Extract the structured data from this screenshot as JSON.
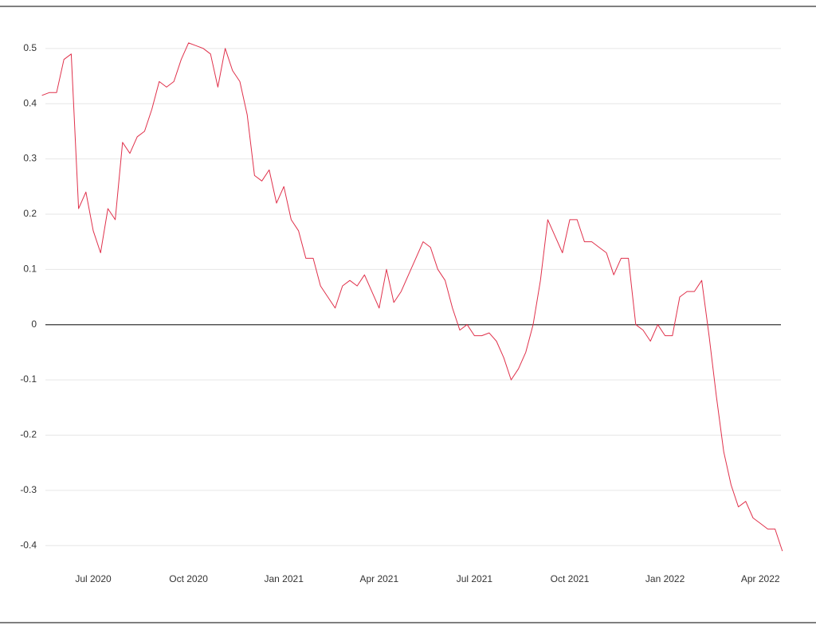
{
  "chart_data": {
    "type": "line",
    "categories": [
      null,
      null,
      null,
      null,
      null,
      null,
      null,
      "Jul 2020",
      null,
      null,
      null,
      null,
      null,
      null,
      null,
      null,
      null,
      null,
      null,
      null,
      "Oct 2020",
      null,
      null,
      null,
      null,
      null,
      null,
      null,
      null,
      null,
      null,
      null,
      null,
      "Jan 2021",
      null,
      null,
      null,
      null,
      null,
      null,
      null,
      null,
      null,
      null,
      null,
      null,
      "Apr 2021",
      null,
      null,
      null,
      null,
      null,
      null,
      null,
      null,
      null,
      null,
      null,
      null,
      "Jul 2021",
      null,
      null,
      null,
      null,
      null,
      null,
      null,
      null,
      null,
      null,
      null,
      null,
      "Oct 2021",
      null,
      null,
      null,
      null,
      null,
      null,
      null,
      null,
      null,
      null,
      null,
      null,
      "Jan 2022",
      null,
      null,
      null,
      null,
      null,
      null,
      null,
      null,
      null,
      null,
      null,
      null,
      "Apr 2022",
      null,
      null,
      null
    ],
    "values": [
      0.415,
      0.42,
      0.42,
      0.48,
      0.49,
      0.21,
      0.24,
      0.17,
      0.13,
      0.21,
      0.19,
      0.33,
      0.31,
      0.34,
      0.35,
      0.39,
      0.44,
      0.43,
      0.44,
      0.48,
      0.51,
      0.505,
      0.5,
      0.49,
      0.43,
      0.5,
      0.46,
      0.44,
      0.38,
      0.27,
      0.26,
      0.28,
      0.22,
      0.25,
      0.19,
      0.17,
      0.12,
      0.12,
      0.07,
      0.05,
      0.03,
      0.07,
      0.08,
      0.07,
      0.09,
      0.06,
      0.03,
      0.1,
      0.04,
      0.06,
      0.09,
      0.12,
      0.15,
      0.14,
      0.1,
      0.08,
      0.03,
      -0.01,
      0.0,
      -0.02,
      -0.02,
      -0.015,
      -0.03,
      -0.06,
      -0.1,
      -0.08,
      -0.05,
      0.0,
      0.08,
      0.19,
      0.16,
      0.13,
      0.19,
      0.19,
      0.15,
      0.15,
      0.14,
      0.13,
      0.09,
      0.12,
      0.12,
      0.0,
      -0.01,
      -0.03,
      0.0,
      -0.02,
      -0.02,
      0.05,
      0.06,
      0.06,
      0.08,
      -0.02,
      -0.13,
      -0.23,
      -0.29,
      -0.33,
      -0.32,
      -0.35,
      -0.36,
      -0.37,
      -0.37,
      -0.41
    ],
    "color": "#e0314b",
    "ylim": [
      -0.43,
      0.53
    ],
    "yticks": [
      -0.4,
      -0.3,
      -0.2,
      -0.1,
      0,
      0.1,
      0.2,
      0.3,
      0.4,
      0.5
    ],
    "grid": true
  }
}
